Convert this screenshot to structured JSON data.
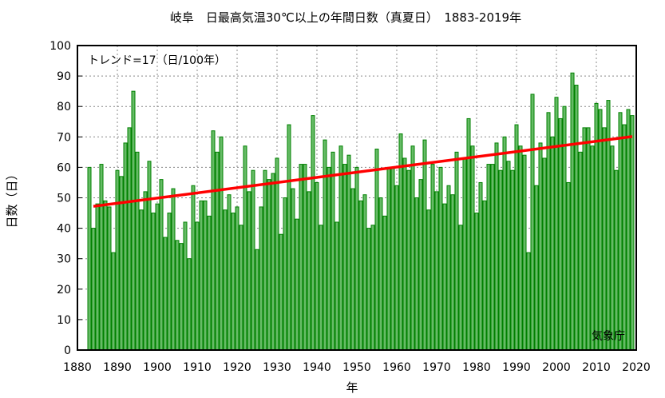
{
  "chart_data": {
    "type": "bar",
    "title": "岐阜　日最高気温30℃以上の年間日数（真夏日）　1883-2019年",
    "xlabel": "年",
    "ylabel": "日数（日）",
    "annotation": "トレンド=17（日/100年）",
    "source": "気象庁",
    "xlim": [
      1880,
      2020
    ],
    "ylim": [
      0,
      100
    ],
    "xticks": [
      1880,
      1890,
      1900,
      1910,
      1920,
      1930,
      1940,
      1950,
      1960,
      1970,
      1980,
      1990,
      2000,
      2010,
      2020
    ],
    "yticks": [
      0,
      10,
      20,
      30,
      40,
      50,
      60,
      70,
      80,
      90,
      100
    ],
    "grid": true,
    "start_year": 1883,
    "values": [
      60,
      40,
      48,
      61,
      49,
      47,
      32,
      59,
      57,
      68,
      73,
      85,
      65,
      46,
      52,
      62,
      45,
      48,
      56,
      37,
      45,
      53,
      36,
      35,
      42,
      30,
      54,
      42,
      49,
      49,
      44,
      72,
      65,
      70,
      46,
      51,
      45,
      47,
      41,
      67,
      52,
      59,
      33,
      47,
      59,
      56,
      58,
      63,
      38,
      50,
      74,
      53,
      43,
      61,
      61,
      52,
      77,
      55,
      41,
      69,
      60,
      65,
      42,
      67,
      61,
      64,
      53,
      60,
      49,
      51,
      40,
      41,
      66,
      50,
      44,
      60,
      60,
      54,
      71,
      63,
      59,
      67,
      50,
      56,
      69,
      46,
      61,
      52,
      60,
      48,
      54,
      51,
      65,
      41,
      63,
      76,
      67,
      45,
      55,
      49,
      61,
      61,
      68,
      59,
      70,
      62,
      59,
      74,
      67,
      64,
      32,
      84,
      54,
      68,
      63,
      78,
      70,
      83,
      76,
      80,
      55,
      91,
      87,
      65,
      73,
      73,
      67,
      81,
      79,
      73,
      82,
      67,
      59,
      78,
      74,
      79,
      77
    ],
    "trend": {
      "start": [
        1884,
        47.2
      ],
      "end": [
        2019,
        70.1
      ],
      "color": "#ff0000"
    },
    "bar_color": "#66bb66",
    "bar_edge": "#008000"
  }
}
